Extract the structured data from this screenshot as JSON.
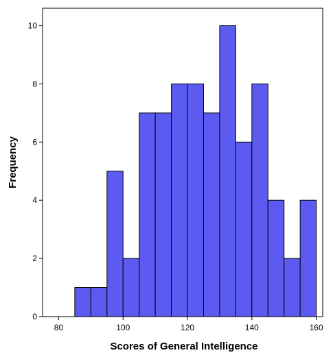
{
  "chart_data": {
    "type": "bar",
    "title": "",
    "xlabel": "Scores of General Intelligence",
    "ylabel": "Frequency",
    "xlim": [
      75,
      162
    ],
    "ylim": [
      0,
      10.6
    ],
    "x_ticks": [
      80,
      100,
      120,
      140,
      160
    ],
    "y_ticks": [
      0,
      2,
      4,
      6,
      8,
      10
    ],
    "bin_width": 5,
    "bins": [
      {
        "start": 85,
        "end": 90,
        "value": 1
      },
      {
        "start": 90,
        "end": 95,
        "value": 1
      },
      {
        "start": 95,
        "end": 100,
        "value": 5
      },
      {
        "start": 100,
        "end": 105,
        "value": 2
      },
      {
        "start": 105,
        "end": 110,
        "value": 7
      },
      {
        "start": 110,
        "end": 115,
        "value": 7
      },
      {
        "start": 115,
        "end": 120,
        "value": 8
      },
      {
        "start": 120,
        "end": 125,
        "value": 8
      },
      {
        "start": 125,
        "end": 130,
        "value": 7
      },
      {
        "start": 130,
        "end": 135,
        "value": 10
      },
      {
        "start": 135,
        "end": 140,
        "value": 6
      },
      {
        "start": 140,
        "end": 145,
        "value": 8
      },
      {
        "start": 145,
        "end": 150,
        "value": 4
      },
      {
        "start": 150,
        "end": 155,
        "value": 2
      },
      {
        "start": 155,
        "end": 160,
        "value": 4
      }
    ],
    "grid": false,
    "colors": {
      "bar_fill": "#5b5bf2",
      "bar_stroke": "#000000",
      "axis": "#000000",
      "background": "#ffffff"
    }
  }
}
